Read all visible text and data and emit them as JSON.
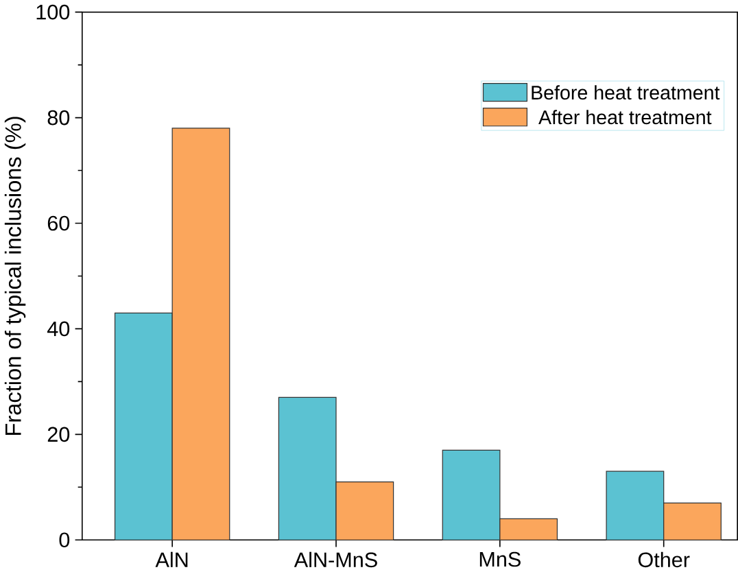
{
  "chart_data": {
    "type": "bar",
    "ylabel": "Fraction of typical inclusions (%)",
    "categories": [
      "AlN",
      "AlN-MnS",
      "MnS",
      "Other"
    ],
    "series": [
      {
        "name": "Before heat treatment",
        "color": "#5bc2d2",
        "values": [
          43,
          27,
          17,
          13
        ]
      },
      {
        "name": "After heat treatment",
        "color": "#fba65c",
        "values": [
          78,
          11,
          4,
          7
        ]
      }
    ],
    "ylim": [
      0,
      100
    ],
    "yticks": [
      0,
      20,
      40,
      60,
      80,
      100
    ],
    "grid": false,
    "legend": "top right"
  }
}
